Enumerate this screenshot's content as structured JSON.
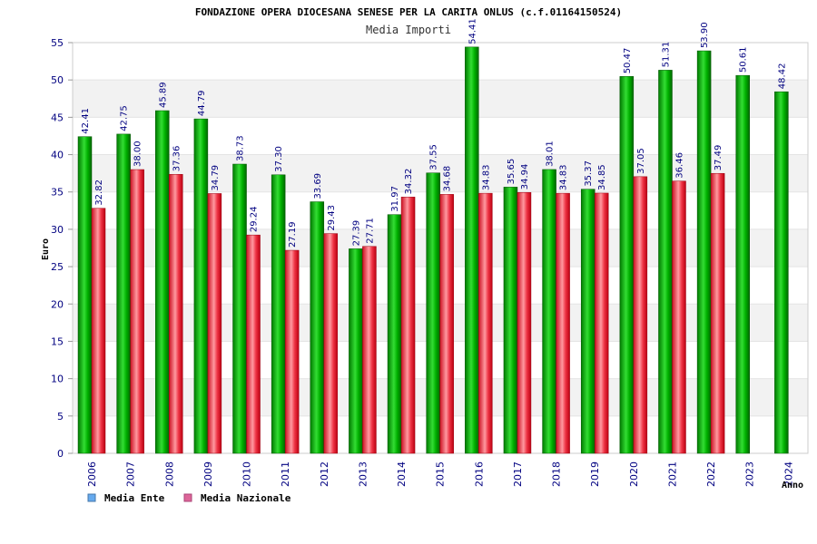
{
  "chart_data": {
    "type": "bar",
    "title": "FONDAZIONE OPERA DIOCESANA SENESE PER LA CARITA ONLUS (c.f.01164150524)",
    "subtitle": "Media Importi",
    "ylabel": "Euro",
    "xlabel": "Anno",
    "ylim": [
      0,
      55
    ],
    "yticks": [
      0,
      5,
      10,
      15,
      20,
      25,
      30,
      35,
      40,
      45,
      50,
      55
    ],
    "grid": "horizontal-bands",
    "legend_position": "bottom-left",
    "categories": [
      "2006",
      "2007",
      "2008",
      "2009",
      "2010",
      "2011",
      "2012",
      "2013",
      "2014",
      "2015",
      "2016",
      "2017",
      "2018",
      "2019",
      "2020",
      "2021",
      "2022",
      "2023",
      "2024"
    ],
    "series": [
      {
        "name": "Media Ente",
        "color": "#00aa00",
        "legend_color": "#66aaee",
        "values": [
          42.41,
          42.75,
          45.89,
          44.79,
          38.73,
          37.3,
          33.69,
          27.39,
          31.97,
          37.55,
          54.41,
          35.65,
          38.01,
          35.37,
          50.47,
          51.31,
          53.9,
          50.61,
          48.42
        ],
        "labels": [
          "42.41",
          "42.75",
          "45.89",
          "44.79",
          "38.73",
          "37.30",
          "33.69",
          "27.39",
          "31.97",
          "37.55",
          "54.41",
          "35.65",
          "38.01",
          "35.37",
          "50.47",
          "51.31",
          "53.90",
          "50.61",
          "48.42"
        ]
      },
      {
        "name": "Media Nazionale",
        "color": "#ee2233",
        "legend_color": "#dd6699",
        "values": [
          32.82,
          38.0,
          37.36,
          34.79,
          29.24,
          27.19,
          29.43,
          27.71,
          34.32,
          34.68,
          34.83,
          34.94,
          34.83,
          34.85,
          37.05,
          36.46,
          37.49,
          null,
          null
        ],
        "labels": [
          "32.82",
          "38.00",
          "37.36",
          "34.79",
          "29.24",
          "27.19",
          "29.43",
          "27.71",
          "34.32",
          "34.68",
          "34.83",
          "34.94",
          "34.83",
          "34.85",
          "37.05",
          "36.46",
          "37.49",
          "",
          ""
        ]
      }
    ]
  }
}
